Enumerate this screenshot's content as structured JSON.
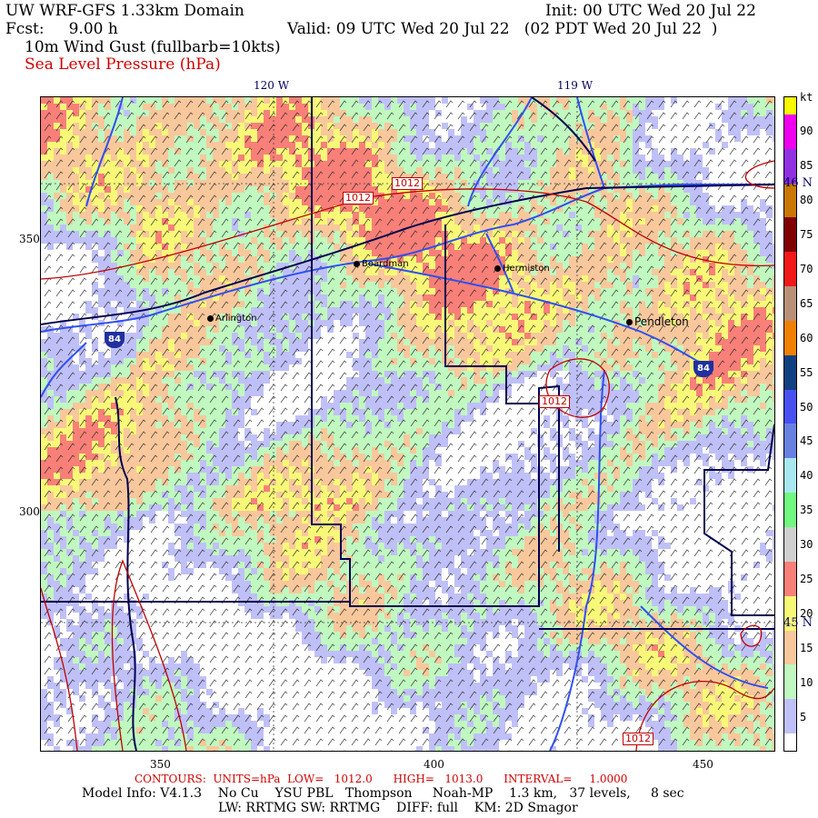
{
  "header": {
    "title": "UW WRF-GFS 1.33km Domain",
    "init": "Init: 00 UTC Wed 20 Jul 22",
    "fcst": "Fcst:     9.00 h",
    "valid": "Valid: 09 UTC Wed 20 Jul 22   (02 PDT Wed 20 Jul 22  )",
    "field1": "10m Wind Gust (fullbarb=10kts)",
    "field2": "Sea Level Pressure (hPa)"
  },
  "axes": {
    "top": [
      "120 W",
      "119 W"
    ],
    "right": [
      "46 N",
      "45 N"
    ],
    "left": [
      "350",
      "300"
    ],
    "bottom": [
      "350",
      "400",
      "450"
    ]
  },
  "cities": [
    "Boardman",
    "Hermiston",
    "Arlington",
    "Pendleton"
  ],
  "interstates": [
    "84",
    "84"
  ],
  "contour_labels": [
    "1012",
    "1012",
    "1012",
    "1012"
  ],
  "colorbar": {
    "unit": "kt",
    "labels": [
      "5",
      "10",
      "15",
      "20",
      "25",
      "30",
      "35",
      "40",
      "45",
      "50",
      "55",
      "60",
      "65",
      "70",
      "75",
      "80",
      "85",
      "90"
    ],
    "colors": [
      "#ffffff",
      "#c0c0f8",
      "#c0c0f8",
      "#c0f8c0",
      "#c0f8c0",
      "#f8c89c",
      "#f8c89c",
      "#f8f878",
      "#f8f878",
      "#f88078",
      "#f88078",
      "#d0d0d0",
      "#d0d0d0",
      "#70f880",
      "#70f880",
      "#a8e8f0",
      "#a8e8f0",
      "#6880e0",
      "#6880e0",
      "#4850f0",
      "#4850f0",
      "#104080",
      "#104080",
      "#f08000",
      "#f08000",
      "#b89078",
      "#b89078",
      "#f01818",
      "#f01818",
      "#800000",
      "#800000",
      "#c87800",
      "#c87800",
      "#9030e0",
      "#9030e0",
      "#f000f0",
      "#f000f0",
      "#f8f800"
    ]
  },
  "field_palette": [
    "#c0c0f8",
    "#c0f8c0",
    "#f8c89c",
    "#f8f878",
    "#f88078",
    "#ffffff"
  ],
  "footer": {
    "contours": "CONTOURS:  UNITS=hPa  LOW=   1012.0      HIGH=   1013.0      INTERVAL=     1.0000",
    "model": "Model Info: V4.1.3    No Cu    YSU PBL   Thompson     Noah-MP    1.3 km,   37 levels,     8 sec",
    "physics": "LW: RRTMG SW: RRTMG    DIFF: full    KM: 2D Smagor"
  }
}
